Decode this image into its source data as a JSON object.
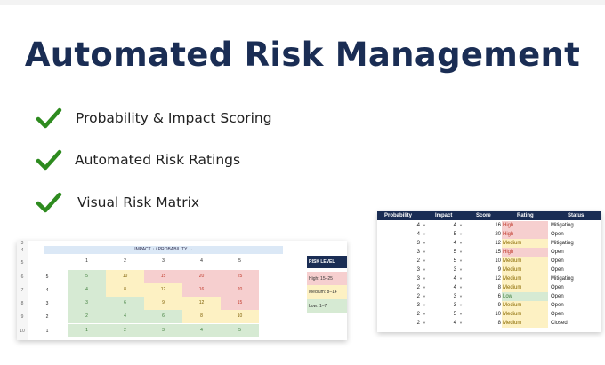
{
  "title": "Automated Risk Management",
  "features": [
    "Probability & Impact Scoring",
    "Automated Risk Ratings",
    "Visual Risk Matrix"
  ],
  "matrix": {
    "axis_label": "IMPACT ↓ / PROBABILITY →",
    "row_numbers": [
      "3",
      "4",
      "5",
      "6",
      "7",
      "8",
      "9",
      "10"
    ],
    "col_headers": [
      "1",
      "2",
      "3",
      "4",
      "5"
    ],
    "rows": [
      {
        "label": "5",
        "cells": [
          "5",
          "10",
          "15",
          "20",
          "25"
        ]
      },
      {
        "label": "4",
        "cells": [
          "4",
          "8",
          "12",
          "16",
          "20"
        ]
      },
      {
        "label": "3",
        "cells": [
          "3",
          "6",
          "9",
          "12",
          "15"
        ]
      },
      {
        "label": "2",
        "cells": [
          "2",
          "4",
          "6",
          "8",
          "10"
        ]
      },
      {
        "label": "1",
        "cells": [
          "1",
          "2",
          "3",
          "4",
          "5"
        ]
      }
    ],
    "legend_header": "RISK LEVEL",
    "legend": [
      "High: 15–25",
      "Medium: 8–14",
      "Low: 1–7"
    ]
  },
  "register": {
    "headers": [
      "Probability",
      "Impact",
      "Score",
      "Rating",
      "Status"
    ],
    "rows": [
      {
        "probability": "4",
        "impact": "4",
        "score": "16",
        "rating": "High",
        "status": "Mitigating"
      },
      {
        "probability": "4",
        "impact": "5",
        "score": "20",
        "rating": "High",
        "status": "Open"
      },
      {
        "probability": "3",
        "impact": "4",
        "score": "12",
        "rating": "Medium",
        "status": "Mitigating"
      },
      {
        "probability": "3",
        "impact": "5",
        "score": "15",
        "rating": "High",
        "status": "Open"
      },
      {
        "probability": "2",
        "impact": "5",
        "score": "10",
        "rating": "Medium",
        "status": "Open"
      },
      {
        "probability": "3",
        "impact": "3",
        "score": "9",
        "rating": "Medium",
        "status": "Open"
      },
      {
        "probability": "3",
        "impact": "4",
        "score": "12",
        "rating": "Medium",
        "status": "Mitigating"
      },
      {
        "probability": "2",
        "impact": "4",
        "score": "8",
        "rating": "Medium",
        "status": "Open"
      },
      {
        "probability": "2",
        "impact": "3",
        "score": "6",
        "rating": "Low",
        "status": "Open"
      },
      {
        "probability": "3",
        "impact": "3",
        "score": "9",
        "rating": "Medium",
        "status": "Open"
      },
      {
        "probability": "2",
        "impact": "5",
        "score": "10",
        "rating": "Medium",
        "status": "Open"
      },
      {
        "probability": "2",
        "impact": "4",
        "score": "8",
        "rating": "Medium",
        "status": "Closed"
      }
    ]
  },
  "colors": {
    "title": "#1a2d54",
    "check": "#2e8b1f",
    "high": "#f6cfcf",
    "medium": "#fdf1c3",
    "low": "#d6ead3",
    "header": "#1a2d54"
  },
  "icons": {
    "bullet": "checkmark-icon"
  }
}
